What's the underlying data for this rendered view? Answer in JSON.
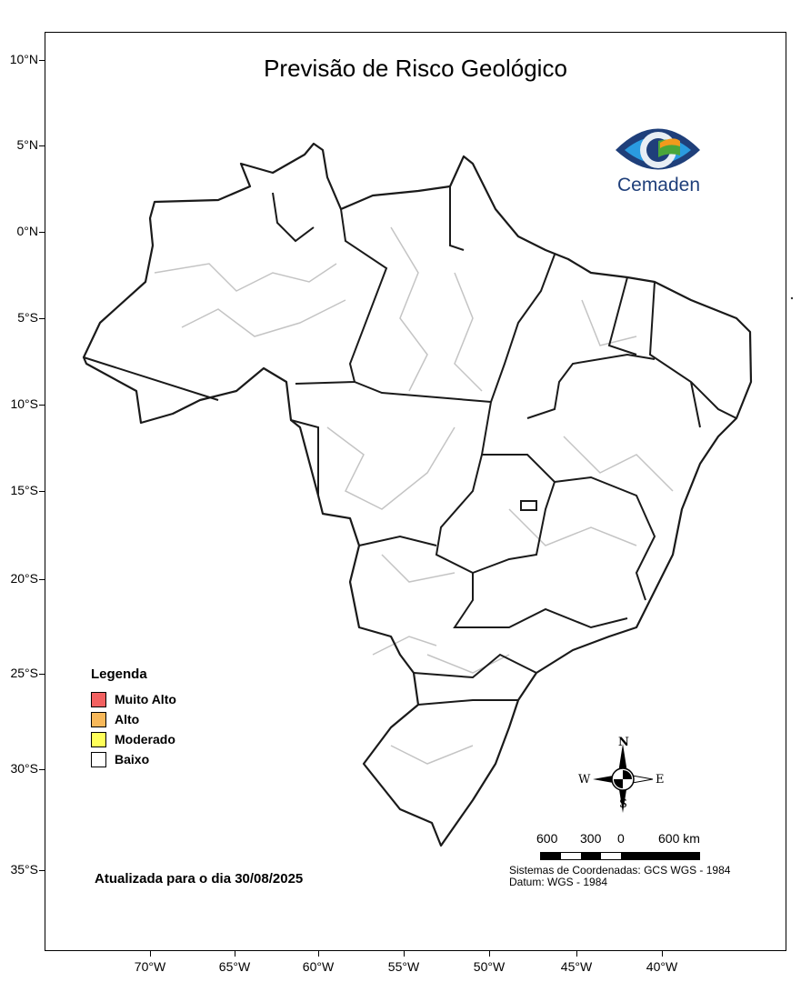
{
  "title": "Previsão de Risco Geológico",
  "logo": {
    "text": "Cemaden",
    "colors": {
      "dark_blue": "#1f3f7a",
      "light_blue": "#2a9be0",
      "green": "#4aa63a",
      "orange": "#f29a1c"
    }
  },
  "axes": {
    "lat_labels": [
      "10°N",
      "5°N",
      "0°N",
      "5°S",
      "10°S",
      "15°S",
      "20°S",
      "25°S",
      "30°S",
      "35°S"
    ],
    "lon_labels": [
      "70°W",
      "65°W",
      "60°W",
      "55°W",
      "50°W",
      "45°W",
      "40°W"
    ]
  },
  "legend": {
    "title": "Legenda",
    "items": [
      {
        "label": "Muito Alto",
        "color": "#f26161"
      },
      {
        "label": "Alto",
        "color": "#f7b85a"
      },
      {
        "label": "Moderado",
        "color": "#ffff59"
      },
      {
        "label": "Baixo",
        "color": "#ffffff"
      }
    ]
  },
  "date_text": "Atualizada para o dia 30/08/2025",
  "compass": {
    "n": "N",
    "s": "S",
    "e": "E",
    "w": "W"
  },
  "scale": {
    "labels": [
      "600",
      "300",
      "0",
      "600 km"
    ]
  },
  "crs": {
    "system": "Sistemas de Coordenadas: GCS WGS - 1984",
    "datum": "Datum: WGS - 1984"
  },
  "map": {
    "state_border_color": "#1a1a1a",
    "municipal_border_color": "#c0c0c0",
    "fill": "#ffffff"
  }
}
